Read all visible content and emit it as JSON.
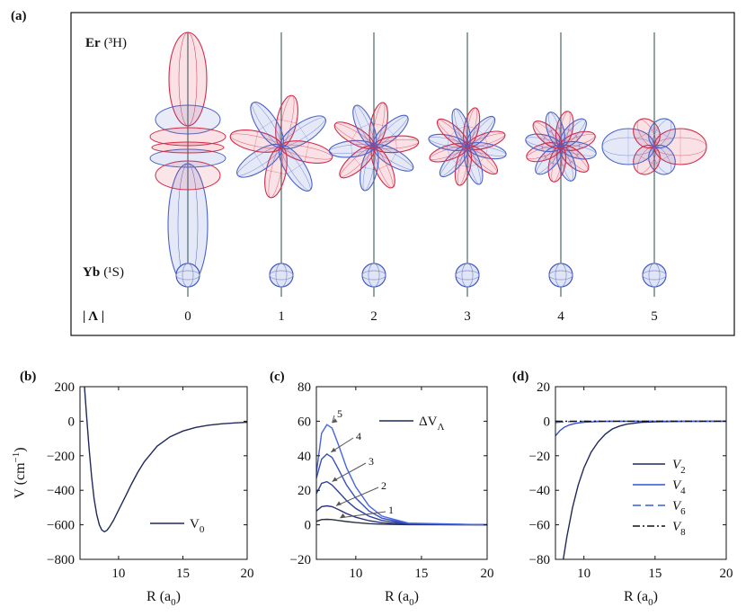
{
  "panel_a": {
    "letter": "(a)",
    "er_label": "Er",
    "er_state": "(³H)",
    "yb_label": "Yb",
    "yb_state": "(¹S)",
    "lambda_label": "| Λ |",
    "lambda_values": [
      "0",
      "1",
      "2",
      "3",
      "4",
      "5"
    ]
  },
  "colors": {
    "red": "#d42a47",
    "blue": "#4a63c9",
    "navy": "#1f2a5a",
    "black": "#111111"
  },
  "chart_data": [
    {
      "letter": "(b)",
      "type": "line",
      "xlabel": "R (a",
      "xlabel_sub": "0",
      "ylabel": "V (cm",
      "ylabel_sup": "−1",
      "xlim": [
        7,
        20
      ],
      "ylim": [
        -800,
        200
      ],
      "xticks": [
        10,
        15,
        20
      ],
      "yticks": [
        200,
        0,
        -200,
        -400,
        -600,
        -800
      ],
      "legend": {
        "label": "V",
        "sub": "0",
        "style": "solid",
        "position": "lower-right"
      },
      "series": [
        {
          "name": "V0",
          "color": "#1f2a5a",
          "style": "solid",
          "x": [
            7.35,
            7.5,
            7.7,
            7.9,
            8.1,
            8.3,
            8.5,
            8.7,
            8.9,
            9.1,
            9.3,
            9.6,
            10,
            10.5,
            11,
            11.5,
            12,
            13,
            14,
            15,
            16,
            17,
            18,
            19,
            20
          ],
          "y": [
            200,
            40,
            -150,
            -320,
            -450,
            -540,
            -600,
            -630,
            -640,
            -632,
            -612,
            -575,
            -515,
            -440,
            -365,
            -295,
            -235,
            -145,
            -90,
            -57,
            -36,
            -23,
            -15,
            -10,
            -6
          ]
        }
      ]
    },
    {
      "letter": "(c)",
      "type": "line",
      "xlabel": "R (a",
      "xlabel_sub": "0",
      "xlim": [
        7,
        20
      ],
      "ylim": [
        -20,
        80
      ],
      "xticks": [
        10,
        15,
        20
      ],
      "yticks": [
        80,
        60,
        40,
        20,
        0,
        -20
      ],
      "legend": {
        "label": "ΔV",
        "sub": "Λ",
        "style": "solid",
        "position": "upper-right"
      },
      "annotations": [
        "5",
        "4",
        "3",
        "2",
        "1"
      ],
      "series": [
        {
          "name": "1",
          "color": "#2a2f45",
          "x": [
            7,
            7.4,
            7.8,
            8.2,
            8.7,
            9.3,
            10,
            11,
            12,
            14,
            20
          ],
          "y": [
            2,
            3,
            3.2,
            3,
            2.5,
            1.9,
            1.3,
            0.7,
            0.35,
            0.1,
            0
          ]
        },
        {
          "name": "2",
          "color": "#2a337a",
          "x": [
            7,
            7.4,
            7.8,
            8.2,
            8.7,
            9.3,
            10,
            11,
            12,
            14,
            20
          ],
          "y": [
            8,
            10.5,
            11,
            10.5,
            8.8,
            6.5,
            4.4,
            2.4,
            1.2,
            0.3,
            0
          ]
        },
        {
          "name": "3",
          "color": "#2f3f9e",
          "x": [
            7,
            7.4,
            7.8,
            8.2,
            8.7,
            9.3,
            10,
            11,
            12,
            14,
            20
          ],
          "y": [
            18,
            24,
            25,
            23,
            19,
            14,
            9.5,
            5,
            2.5,
            0.6,
            0
          ]
        },
        {
          "name": "4",
          "color": "#3650c0",
          "x": [
            7,
            7.4,
            7.8,
            8.2,
            8.7,
            9.3,
            10,
            11,
            12,
            14,
            20
          ],
          "y": [
            27,
            38,
            41,
            39,
            32,
            23,
            15.5,
            8,
            3.8,
            0.8,
            0
          ]
        },
        {
          "name": "5",
          "color": "#4565e6",
          "x": [
            7,
            7.4,
            7.8,
            8.2,
            8.7,
            9.3,
            10,
            11,
            12,
            14,
            20
          ],
          "y": [
            30,
            53,
            58,
            56,
            46,
            33,
            22,
            11,
            5,
            1,
            0
          ]
        }
      ]
    },
    {
      "letter": "(d)",
      "type": "line",
      "xlabel": "R (a",
      "xlabel_sub": "0",
      "xlim": [
        8,
        20
      ],
      "ylim": [
        -80,
        20
      ],
      "xticks": [
        10,
        15,
        20
      ],
      "yticks": [
        20,
        0,
        -20,
        -40,
        -60,
        -80
      ],
      "legend_items": [
        {
          "label": "V",
          "sub": "2",
          "style": "solid",
          "color": "#1f2a5a"
        },
        {
          "label": "V",
          "sub": "4",
          "style": "solid",
          "color": "#3150d8"
        },
        {
          "label": "V",
          "sub": "6",
          "style": "dashed",
          "color": "#3b5ae0"
        },
        {
          "label": "V",
          "sub": "8",
          "style": "dashdot",
          "color": "#111111"
        }
      ],
      "series": [
        {
          "name": "V2",
          "color": "#1f2a5a",
          "style": "solid",
          "x": [
            8.55,
            8.8,
            9.2,
            9.6,
            10,
            10.5,
            11,
            11.5,
            12,
            12.5,
            13,
            14,
            15,
            17,
            20
          ],
          "y": [
            -80,
            -67,
            -50,
            -37,
            -27,
            -18,
            -12,
            -7.5,
            -4.5,
            -2.8,
            -1.7,
            -0.7,
            -0.3,
            -0.1,
            0
          ]
        },
        {
          "name": "V4",
          "color": "#3150d8",
          "style": "solid",
          "x": [
            8,
            8.3,
            8.6,
            9,
            9.5,
            10,
            11,
            12,
            14,
            20
          ],
          "y": [
            -8.5,
            -5.5,
            -3.6,
            -2.1,
            -1.1,
            -0.6,
            -0.2,
            -0.05,
            0,
            0
          ]
        },
        {
          "name": "V6",
          "color": "#3b5ae0",
          "style": "dashed",
          "x": [
            8,
            8.5,
            9,
            10,
            12,
            20
          ],
          "y": [
            -0.8,
            -0.4,
            -0.2,
            -0.05,
            0,
            0
          ]
        },
        {
          "name": "V8",
          "color": "#111111",
          "style": "dashdot",
          "x": [
            8,
            9,
            10,
            12,
            20
          ],
          "y": [
            0,
            0,
            0,
            0,
            0
          ]
        }
      ]
    }
  ]
}
